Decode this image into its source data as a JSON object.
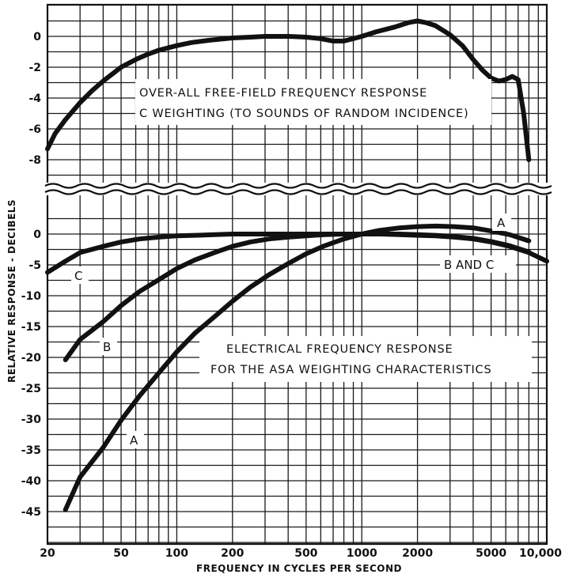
{
  "chart_data": [
    {
      "type": "line",
      "title": "OVER-ALL FREE-FIELD FREQUENCY RESPONSE",
      "subtitle": "C WEIGHTING (TO SOUNDS OF RANDOM INCIDENCE)",
      "xscale": "log",
      "xlim": [
        20,
        10000
      ],
      "ylim": [
        -9,
        1.8
      ],
      "yticks": [
        0,
        -2,
        -4,
        -6,
        -8
      ],
      "ytick_labels": [
        "0",
        "-2",
        "-4",
        "-6",
        "-8"
      ],
      "grid": true,
      "series": [
        {
          "name": "",
          "x": [
            20,
            22,
            25,
            30,
            35,
            40,
            50,
            60,
            70,
            80,
            100,
            120,
            150,
            200,
            250,
            300,
            400,
            500,
            600,
            700,
            800,
            900,
            1000,
            1200,
            1500,
            1800,
            2000,
            2200,
            2500,
            3000,
            3500,
            4000,
            4500,
            5000,
            5500,
            6000,
            6500,
            7000,
            7500,
            8000
          ],
          "y": [
            -7.3,
            -6.3,
            -5.4,
            -4.3,
            -3.5,
            -2.9,
            -2.0,
            -1.5,
            -1.15,
            -0.9,
            -0.6,
            -0.4,
            -0.25,
            -0.1,
            -0.05,
            0,
            0,
            -0.05,
            -0.15,
            -0.3,
            -0.3,
            -0.15,
            0,
            0.3,
            0.6,
            0.9,
            1.0,
            0.9,
            0.7,
            0.1,
            -0.6,
            -1.5,
            -2.2,
            -2.7,
            -2.9,
            -2.8,
            -2.6,
            -2.8,
            -5.0,
            -8.0
          ]
        }
      ]
    },
    {
      "type": "line",
      "title": "ELECTRICAL FREQUENCY RESPONSE",
      "subtitle": "FOR THE ASA WEIGHTING CHARACTERISTICS",
      "xscale": "log",
      "xlim": [
        20,
        10000
      ],
      "ylim": [
        -50,
        2
      ],
      "yticks": [
        0,
        -5,
        -10,
        -15,
        -20,
        -25,
        -30,
        -35,
        -40,
        -45
      ],
      "ytick_labels": [
        "0",
        "-5",
        "-10",
        "-15",
        "-20",
        "-25",
        "-30",
        "-35",
        "-40",
        "-45"
      ],
      "xticks": [
        20,
        50,
        100,
        200,
        500,
        1000,
        2000,
        5000,
        10000
      ],
      "xtick_labels": [
        "20",
        "50",
        "100",
        "200",
        "500",
        "1000",
        "2000",
        "5000",
        "10,000"
      ],
      "xlabel": "FREQUENCY IN CYCLES PER SECOND",
      "ylabel": "RELATIVE RESPONSE - DECIBELS",
      "grid": true,
      "series": [
        {
          "name": "A",
          "x": [
            25,
            30,
            40,
            50,
            63,
            80,
            100,
            125,
            160,
            200,
            250,
            315,
            400,
            500,
            630,
            800,
            1000,
            1250,
            1600,
            2000,
            2500,
            3150,
            4000,
            5000,
            6300,
            8000
          ],
          "y": [
            -44.7,
            -39.4,
            -34.6,
            -30.2,
            -26.2,
            -22.5,
            -19.1,
            -16.1,
            -13.4,
            -10.9,
            -8.6,
            -6.6,
            -4.8,
            -3.2,
            -1.9,
            -0.8,
            0,
            0.6,
            1.0,
            1.2,
            1.3,
            1.2,
            1.0,
            0.5,
            -0.1,
            -1.1
          ]
        },
        {
          "name": "B",
          "x": [
            25,
            30,
            40,
            50,
            63,
            80,
            100,
            125,
            160,
            200,
            250,
            315,
            400,
            500,
            630,
            800,
            1000,
            1250,
            1600,
            2000,
            2500,
            3150,
            4000,
            5000,
            6300,
            8000
          ],
          "y": [
            -20.4,
            -17.1,
            -14.2,
            -11.6,
            -9.3,
            -7.4,
            -5.6,
            -4.2,
            -3.0,
            -2.0,
            -1.3,
            -0.8,
            -0.5,
            -0.3,
            -0.1,
            0,
            0,
            0,
            0,
            -0.1,
            -0.2,
            -0.4,
            -0.7,
            -1.2,
            -1.9,
            -2.9
          ]
        },
        {
          "name": "C",
          "x": [
            20,
            25,
            30,
            40,
            50,
            63,
            80,
            100,
            125,
            160,
            200,
            250,
            315,
            400,
            500,
            630,
            800,
            1000,
            1250,
            1600,
            2000,
            2500,
            3150,
            4000,
            5000,
            6300,
            8000,
            10000
          ],
          "y": [
            -6.2,
            -4.4,
            -3.0,
            -2.0,
            -1.3,
            -0.8,
            -0.5,
            -0.3,
            -0.2,
            -0.1,
            0,
            0,
            0,
            0,
            0,
            0,
            0,
            0,
            0,
            -0.1,
            -0.2,
            -0.3,
            -0.5,
            -0.8,
            -1.3,
            -2.0,
            -3.0,
            -4.4
          ]
        }
      ],
      "curve_labels": {
        "A_upper": "A",
        "B_and_C": "B AND C",
        "C": "C",
        "B": "B",
        "A_lower": "A"
      }
    }
  ]
}
